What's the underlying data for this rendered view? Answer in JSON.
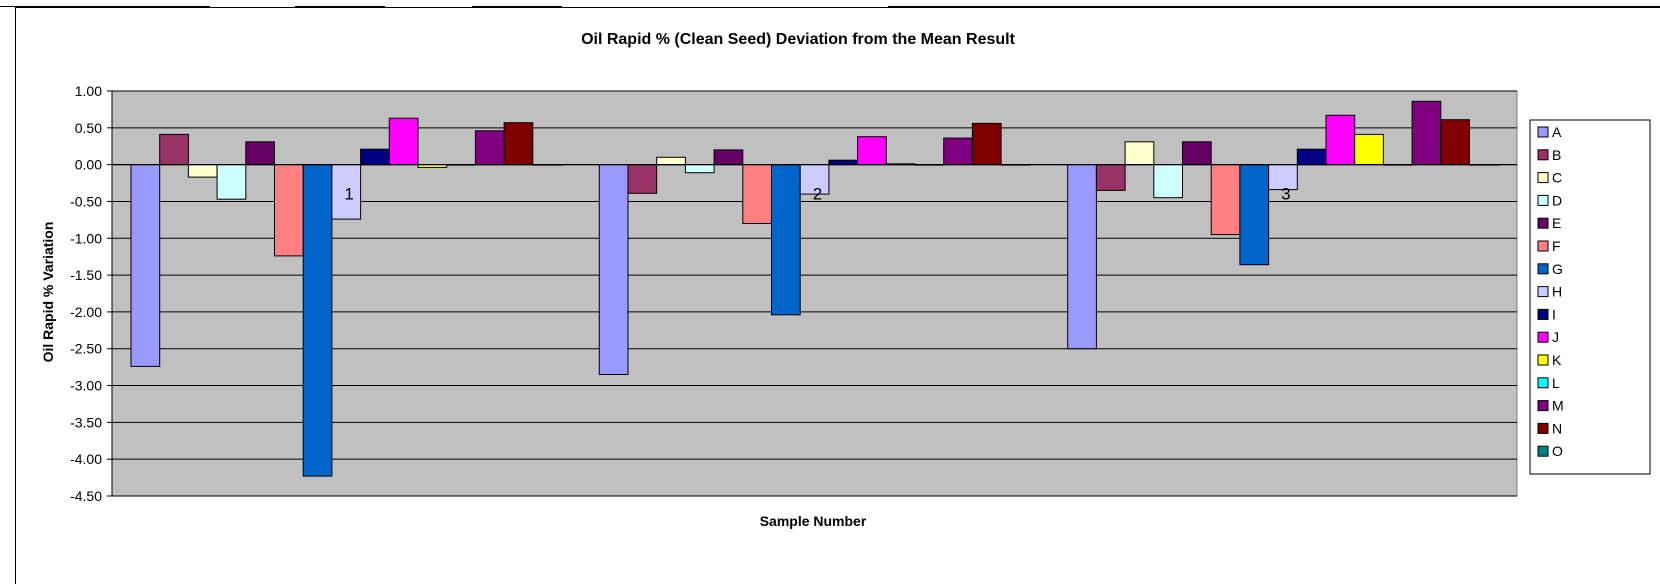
{
  "chart_data": {
    "type": "bar",
    "title": "Oil Rapid % (Clean Seed) Deviation from the Mean Result",
    "xlabel": "Sample Number",
    "ylabel": "Oil Rapid % Variation",
    "ylim": [
      -4.5,
      1.0
    ],
    "ytick_step": 0.5,
    "yticks": [
      "1.00",
      "0.50",
      "0.00",
      "-0.50",
      "-1.00",
      "-1.50",
      "-2.00",
      "-2.50",
      "-3.00",
      "-3.50",
      "-4.00",
      "-4.50"
    ],
    "grid": true,
    "legend_position": "right",
    "plot_background": "#c0c0c0",
    "categories": [
      "1",
      "2",
      "3"
    ],
    "series": [
      {
        "name": "A",
        "color": "#9999ff",
        "values": [
          -2.74,
          -2.85,
          -2.5
        ]
      },
      {
        "name": "B",
        "color": "#993366",
        "values": [
          0.41,
          -0.39,
          -0.35
        ]
      },
      {
        "name": "C",
        "color": "#ffffcc",
        "values": [
          -0.17,
          0.1,
          0.31
        ]
      },
      {
        "name": "D",
        "color": "#ccffff",
        "values": [
          -0.47,
          -0.11,
          -0.45
        ]
      },
      {
        "name": "E",
        "color": "#660066",
        "values": [
          0.31,
          0.2,
          0.31
        ]
      },
      {
        "name": "F",
        "color": "#ff8080",
        "values": [
          -1.24,
          -0.8,
          -0.95
        ]
      },
      {
        "name": "G",
        "color": "#0066cc",
        "values": [
          -4.23,
          -2.04,
          -1.36
        ]
      },
      {
        "name": "H",
        "color": "#ccccff",
        "values": [
          -0.74,
          -0.4,
          -0.34
        ]
      },
      {
        "name": "I",
        "color": "#000080",
        "values": [
          0.21,
          0.06,
          0.21
        ]
      },
      {
        "name": "J",
        "color": "#ff00ff",
        "values": [
          0.63,
          0.38,
          0.67
        ]
      },
      {
        "name": "K",
        "color": "#ffff00",
        "values": [
          -0.04,
          0.01,
          0.41
        ]
      },
      {
        "name": "L",
        "color": "#00ffff",
        "values": [
          0.0,
          0.0,
          0.0
        ]
      },
      {
        "name": "M",
        "color": "#800080",
        "values": [
          0.46,
          0.36,
          0.86
        ]
      },
      {
        "name": "N",
        "color": "#800000",
        "values": [
          0.57,
          0.56,
          0.61
        ]
      },
      {
        "name": "O",
        "color": "#008080",
        "values": [
          0.0,
          0.0,
          0.0
        ]
      }
    ]
  }
}
